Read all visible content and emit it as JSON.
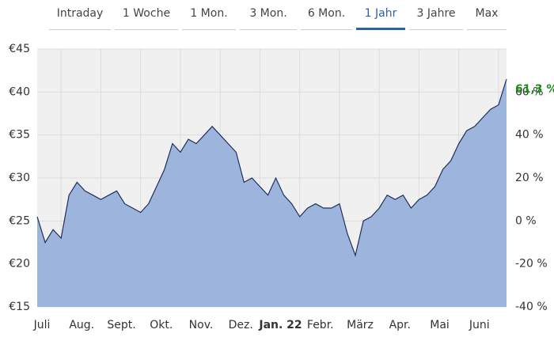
{
  "chart_data": {
    "type": "area",
    "tabs": [
      {
        "label": "Intraday",
        "active": false
      },
      {
        "label": "1 Woche",
        "active": false
      },
      {
        "label": "1 Mon.",
        "active": false
      },
      {
        "label": "3 Mon.",
        "active": false
      },
      {
        "label": "6 Mon.",
        "active": false
      },
      {
        "label": "1 Jahr",
        "active": true
      },
      {
        "label": "3 Jahre",
        "active": false
      },
      {
        "label": "Max",
        "active": false
      }
    ],
    "categories": [
      "Juli",
      null,
      null,
      null,
      null,
      "Aug.",
      null,
      null,
      null,
      null,
      "Sept.",
      null,
      null,
      null,
      null,
      "Okt.",
      null,
      null,
      null,
      null,
      "Nov.",
      null,
      null,
      null,
      null,
      "Dez.",
      null,
      null,
      null,
      null,
      "Jan. 22",
      null,
      null,
      null,
      null,
      "Febr.",
      null,
      null,
      null,
      null,
      "März",
      null,
      null,
      null,
      null,
      "Apr.",
      null,
      null,
      null,
      null,
      "Mai",
      null,
      null,
      null,
      null,
      "Juni",
      null,
      null,
      null,
      null
    ],
    "bold_category_index": 30,
    "series": [
      {
        "color": "#9db5dd",
        "line_color": "#1f2f5a",
        "values": [
          25.5,
          22.5,
          24,
          23,
          28,
          29.5,
          28.5,
          28,
          27.5,
          28,
          28.5,
          27,
          26.5,
          26,
          27,
          29,
          31,
          34,
          33,
          34.5,
          34,
          35,
          36,
          35,
          34,
          33,
          29.5,
          30,
          29,
          28,
          30,
          28,
          27,
          25.5,
          26.5,
          27,
          26.5,
          26.5,
          27,
          23.5,
          21,
          25,
          25.5,
          26.5,
          28,
          27.5,
          28,
          26.5,
          27.5,
          28,
          29,
          31,
          32,
          34,
          35.5,
          36,
          37,
          38,
          38.5,
          41.5
        ]
      }
    ],
    "ylim": [
      15,
      45
    ],
    "yticks": [
      {
        "value": 15,
        "label": "€15"
      },
      {
        "value": 20,
        "label": "€20"
      },
      {
        "value": 25,
        "label": "€25"
      },
      {
        "value": 30,
        "label": "€30"
      },
      {
        "value": 35,
        "label": "€35"
      },
      {
        "value": 40,
        "label": "€40"
      },
      {
        "value": 45,
        "label": "€45"
      }
    ],
    "y2lim": [
      -40,
      80
    ],
    "y2ticks": [
      {
        "value": -40,
        "label": "-40 %"
      },
      {
        "value": -20,
        "label": "-20 %"
      },
      {
        "value": 0,
        "label": "0 %"
      },
      {
        "value": 20,
        "label": "20 %"
      },
      {
        "value": 40,
        "label": "40 %"
      },
      {
        "value": 60,
        "label": "60 %"
      }
    ],
    "annotations": [
      {
        "text": "61,3 %",
        "value": 61.3,
        "color": "#1e8a1e"
      }
    ],
    "grid": true
  }
}
